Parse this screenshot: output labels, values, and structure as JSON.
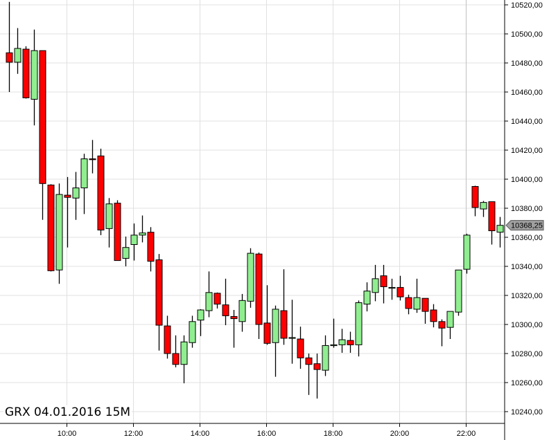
{
  "title": "GRX 04.01.2016 15M",
  "colors": {
    "up": "#90ee90",
    "down": "#ff0000",
    "grid": "#e0e0e0",
    "last_price_badge": "#a0a0a0"
  },
  "chart_data": {
    "type": "candlestick",
    "title": "GRX 04.01.2016 15M",
    "xlabel": "",
    "ylabel": "",
    "ylim": [
      10232,
      10524
    ],
    "y_ticks": [
      "10240,00",
      "10260,00",
      "10280,00",
      "10300,00",
      "10320,00",
      "10340,00",
      "10360,00",
      "10380,00",
      "10400,00",
      "10420,00",
      "10440,00",
      "10460,00",
      "10480,00",
      "10500,00",
      "10520,00"
    ],
    "x_ticks": [
      "10:00",
      "12:00",
      "14:00",
      "16:00",
      "18:00",
      "20:00",
      "22:00"
    ],
    "grid": true,
    "last_price": "10368,25",
    "candles_columns": [
      "time",
      "open",
      "high",
      "low",
      "close"
    ],
    "candles": [
      [
        "08:15",
        10487,
        10522,
        10460,
        10480.5
      ],
      [
        "08:30",
        10480.5,
        10504,
        10472.5,
        10490
      ],
      [
        "08:45",
        10489.5,
        10491.5,
        10455.5,
        10456
      ],
      [
        "09:00",
        10455,
        10503,
        10437,
        10488.5
      ],
      [
        "09:15",
        10488.5,
        10488.5,
        10372,
        10397
      ],
      [
        "09:30",
        10396,
        10396.5,
        10336.5,
        10337
      ],
      [
        "09:45",
        10337.5,
        10397,
        10328,
        10389.5
      ],
      [
        "10:00",
        10389,
        10401.5,
        10353,
        10387.5
      ],
      [
        "10:15",
        10387,
        10405,
        10372,
        10394
      ],
      [
        "10:30",
        10394,
        10417.5,
        10376,
        10414
      ],
      [
        "10:45",
        10414,
        10427,
        10404,
        10413.5
      ],
      [
        "11:00",
        10416,
        10421,
        10361.5,
        10365
      ],
      [
        "11:15",
        10366,
        10387,
        10353,
        10383
      ],
      [
        "11:30",
        10383.5,
        10385.5,
        10344,
        10344
      ],
      [
        "11:45",
        10345.5,
        10360.5,
        10340,
        10353
      ],
      [
        "12:00",
        10355,
        10369.5,
        10344,
        10361.5
      ],
      [
        "12:15",
        10361.5,
        10375,
        10356.5,
        10363
      ],
      [
        "12:30",
        10363.5,
        10367,
        10336.5,
        10343.5
      ],
      [
        "12:45",
        10344.5,
        10348.5,
        10282,
        10299.5
      ],
      [
        "13:00",
        10299,
        10306,
        10276.5,
        10280
      ],
      [
        "13:15",
        10280,
        10292.5,
        10270.5,
        10272.5
      ],
      [
        "13:30",
        10272.5,
        10292.5,
        10259.5,
        10288
      ],
      [
        "13:45",
        10287.5,
        10306,
        10284,
        10302
      ],
      [
        "14:00",
        10303,
        10310.5,
        10292,
        10310
      ],
      [
        "14:15",
        10309.5,
        10336.5,
        10305,
        10322
      ],
      [
        "14:30",
        10321.5,
        10322,
        10311,
        10314
      ],
      [
        "14:45",
        10313.5,
        10331.5,
        10299.5,
        10306
      ],
      [
        "15:00",
        10305.5,
        10310,
        10284,
        10304
      ],
      [
        "15:15",
        10302,
        10321,
        10295,
        10316.5
      ],
      [
        "15:30",
        10316,
        10352.5,
        10311.5,
        10349
      ],
      [
        "15:45",
        10348.5,
        10349.5,
        10290,
        10300
      ],
      [
        "16:00",
        10301,
        10327,
        10286,
        10287
      ],
      [
        "16:15",
        10287.5,
        10313,
        10264,
        10310.5
      ],
      [
        "16:30",
        10309.5,
        10338,
        10286,
        10290.5
      ],
      [
        "16:45",
        10291,
        10317,
        10273,
        10291
      ],
      [
        "17:00",
        10290,
        10298.5,
        10269.5,
        10277
      ],
      [
        "17:15",
        10277,
        10280,
        10251.5,
        10272.5
      ],
      [
        "17:30",
        10273,
        10280,
        10249,
        10269
      ],
      [
        "17:45",
        10268.5,
        10292.5,
        10264.5,
        10285.5
      ],
      [
        "18:00",
        10286,
        10304,
        10284,
        10286
      ],
      [
        "18:15",
        10286,
        10297,
        10280.5,
        10289.5
      ],
      [
        "18:30",
        10289,
        10295,
        10280.5,
        10286
      ],
      [
        "18:45",
        10286,
        10316.5,
        10278,
        10315
      ],
      [
        "19:00",
        10314,
        10329,
        10309,
        10323
      ],
      [
        "19:15",
        10322,
        10341,
        10316,
        10331.5
      ],
      [
        "19:30",
        10333.5,
        10341,
        10314.5,
        10326
      ],
      [
        "19:45",
        10325,
        10331.5,
        10317,
        10325.5
      ],
      [
        "20:00",
        10325.5,
        10333.5,
        10316.5,
        10319
      ],
      [
        "20:15",
        10318.5,
        10320.5,
        10307,
        10311
      ],
      [
        "20:30",
        10310.5,
        10331.5,
        10308,
        10318.5
      ],
      [
        "20:45",
        10318,
        10318,
        10300.5,
        10309
      ],
      [
        "21:00",
        10310,
        10314,
        10298,
        10302
      ],
      [
        "21:15",
        10302,
        10303.5,
        10285,
        10297.5
      ],
      [
        "21:30",
        10298,
        10309,
        10290,
        10309
      ],
      [
        "21:45",
        10308.5,
        10337.5,
        10306,
        10337.5
      ],
      [
        "22:00",
        10338,
        10362.5,
        10335,
        10361.5
      ],
      [
        "22:15",
        10395,
        10395.5,
        10374.5,
        10380.5
      ],
      [
        "22:30",
        10379.5,
        10385,
        10374,
        10384
      ],
      [
        "22:45",
        10384.5,
        10384.5,
        10355,
        10364.5
      ],
      [
        "23:00",
        10363.5,
        10374,
        10353,
        10368.25
      ]
    ]
  }
}
